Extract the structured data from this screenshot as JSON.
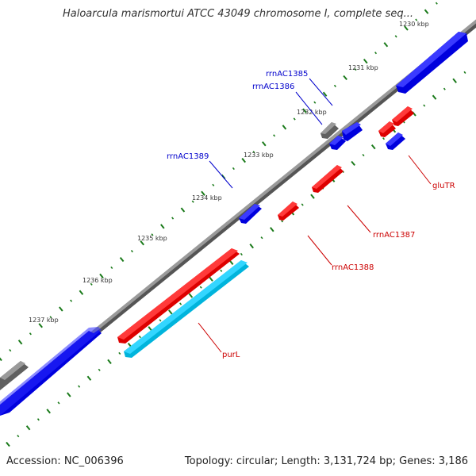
{
  "title": "Haloarcula marismortui ATCC 43049 chromosome I, complete seq...",
  "accession_text": "Accession: NC_006396",
  "summary_text": "Topology: circular; Length: 3,131,724 bp; Genes: 3,186",
  "colors": {
    "backbone": "#8a8a8a",
    "forward_gene": "#0000ee",
    "reverse_gene": "#ee0000",
    "highlight_gene": "#00c8f0",
    "other_feature": "#707070",
    "tick_green": "#1a7a1a",
    "label_text": "#333333"
  },
  "scale_labels": [
    "1230 kbp",
    "1231 kbp",
    "1232 kbp",
    "1233 kbp",
    "1234 kbp",
    "1235 kbp",
    "1236 kbp",
    "1237 kbp"
  ],
  "features": [
    {
      "strand": "forward",
      "start_kbp": 1236.3,
      "end_kbp": 1238.0,
      "label": "",
      "color_key": "forward_gene"
    },
    {
      "strand": "forward",
      "start_kbp": 1237.6,
      "end_kbp": 1238.0,
      "label": "",
      "color_key": "other_feature"
    },
    {
      "strand": "forward",
      "start_kbp": 1229.9,
      "end_kbp": 1231.2,
      "label": "",
      "color_key": "forward_gene"
    },
    {
      "strand": "forward",
      "start_kbp": 1233.55,
      "end_kbp": 1233.8,
      "label": "rrnAC1389",
      "color_key": "forward_gene"
    },
    {
      "strand": "forward",
      "start_kbp": 1232.35,
      "end_kbp": 1232.5,
      "label": "rrnAC1386",
      "color_key": "forward_gene"
    },
    {
      "strand": "forward",
      "start_kbp": 1232.1,
      "end_kbp": 1232.35,
      "label": "rrnAC1385",
      "color_key": "forward_gene"
    },
    {
      "strand": "forward",
      "start_kbp": 1232.35,
      "end_kbp": 1232.55,
      "label": "",
      "color_key": "other_feature"
    },
    {
      "strand": "reverse",
      "start_kbp": 1234.1,
      "end_kbp": 1235.7,
      "label": "",
      "color_key": "reverse_gene"
    },
    {
      "strand": "reverse",
      "start_kbp": 1233.55,
      "end_kbp": 1233.8,
      "label": "rrnAC1388",
      "color_key": "reverse_gene"
    },
    {
      "strand": "reverse",
      "start_kbp": 1232.8,
      "end_kbp": 1233.25,
      "label": "rrnAC1387",
      "color_key": "reverse_gene"
    },
    {
      "strand": "reverse",
      "start_kbp": 1231.9,
      "end_kbp": 1232.1,
      "label": "",
      "color_key": "reverse_gene"
    },
    {
      "strand": "reverse",
      "start_kbp": 1231.5,
      "end_kbp": 1231.8,
      "label": "",
      "color_key": "reverse_gene"
    },
    {
      "strand": "reverse",
      "start_kbp": 1231.8,
      "end_kbp": 1232.05,
      "label": "gluTR",
      "color_key": "forward_gene"
    },
    {
      "strand": "reverse-outer",
      "start_kbp": 1234.1,
      "end_kbp": 1235.7,
      "label": "purL",
      "color_key": "highlight_gene"
    }
  ]
}
